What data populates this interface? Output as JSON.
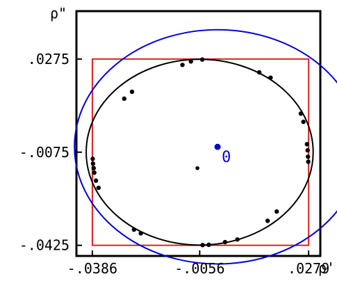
{
  "chart_data": {
    "type": "scatter",
    "title": "",
    "xlabel": "ρ'",
    "ylabel": "ρ\"",
    "xlim": [
      -0.0435,
      0.0315
    ],
    "ylim": [
      -0.0465,
      0.0455
    ],
    "xticks": [
      -0.0386,
      -0.0056,
      0.0279
    ],
    "xtick_labels": [
      "-.0386",
      "-.0056",
      ".0279"
    ],
    "yticks": [
      0.0275,
      -0.0075,
      -0.0425
    ],
    "ytick_labels": [
      ".0275",
      "-.0075",
      "-.0425"
    ],
    "grid": false,
    "bounding_box": {
      "x_min": -0.0386,
      "x_max": 0.0279,
      "y_min": -0.0425,
      "y_max": 0.0275,
      "color": "#dd2222"
    },
    "fitted_circle": {
      "center": [
        -0.0056,
        -0.0075
      ],
      "radius": 0.0349,
      "color": "#000000"
    },
    "outer_circle": {
      "center": [
        -0.0001,
        -0.0055
      ],
      "radius": 0.044,
      "color": "#0000dd"
    },
    "center_point": {
      "x": -0.0001,
      "y": -0.0055,
      "label": "0",
      "color": "#0000dd"
    },
    "small_center_point": {
      "x": -0.0063,
      "y": -0.0135,
      "color": "#000000"
    },
    "points": [
      {
        "x": -0.0048,
        "y": 0.0273
      },
      {
        "x": -0.0083,
        "y": 0.0266
      },
      {
        "x": -0.0109,
        "y": 0.0253
      },
      {
        "x": -0.0264,
        "y": 0.0152
      },
      {
        "x": -0.0288,
        "y": 0.0126
      },
      {
        "x": 0.0127,
        "y": 0.0225
      },
      {
        "x": 0.0162,
        "y": 0.0205
      },
      {
        "x": 0.0255,
        "y": 0.007
      },
      {
        "x": 0.0263,
        "y": 0.0039
      },
      {
        "x": 0.0274,
        "y": -0.0045
      },
      {
        "x": 0.0276,
        "y": -0.0068
      },
      {
        "x": 0.0277,
        "y": -0.0092
      },
      {
        "x": 0.0278,
        "y": -0.0111
      },
      {
        "x": -0.0385,
        "y": -0.01
      },
      {
        "x": -0.0384,
        "y": -0.0118
      },
      {
        "x": -0.0382,
        "y": -0.0135
      },
      {
        "x": -0.038,
        "y": -0.0152
      },
      {
        "x": -0.0375,
        "y": -0.0182
      },
      {
        "x": -0.0367,
        "y": -0.0209
      },
      {
        "x": -0.0258,
        "y": -0.0366
      },
      {
        "x": -0.0237,
        "y": -0.038
      },
      {
        "x": 0.0181,
        "y": -0.0298
      },
      {
        "x": 0.0153,
        "y": -0.0333
      },
      {
        "x": 0.006,
        "y": -0.0403
      },
      {
        "x": 0.0022,
        "y": -0.0413
      },
      {
        "x": -0.0028,
        "y": -0.0423
      },
      {
        "x": -0.0047,
        "y": -0.0424
      }
    ]
  }
}
